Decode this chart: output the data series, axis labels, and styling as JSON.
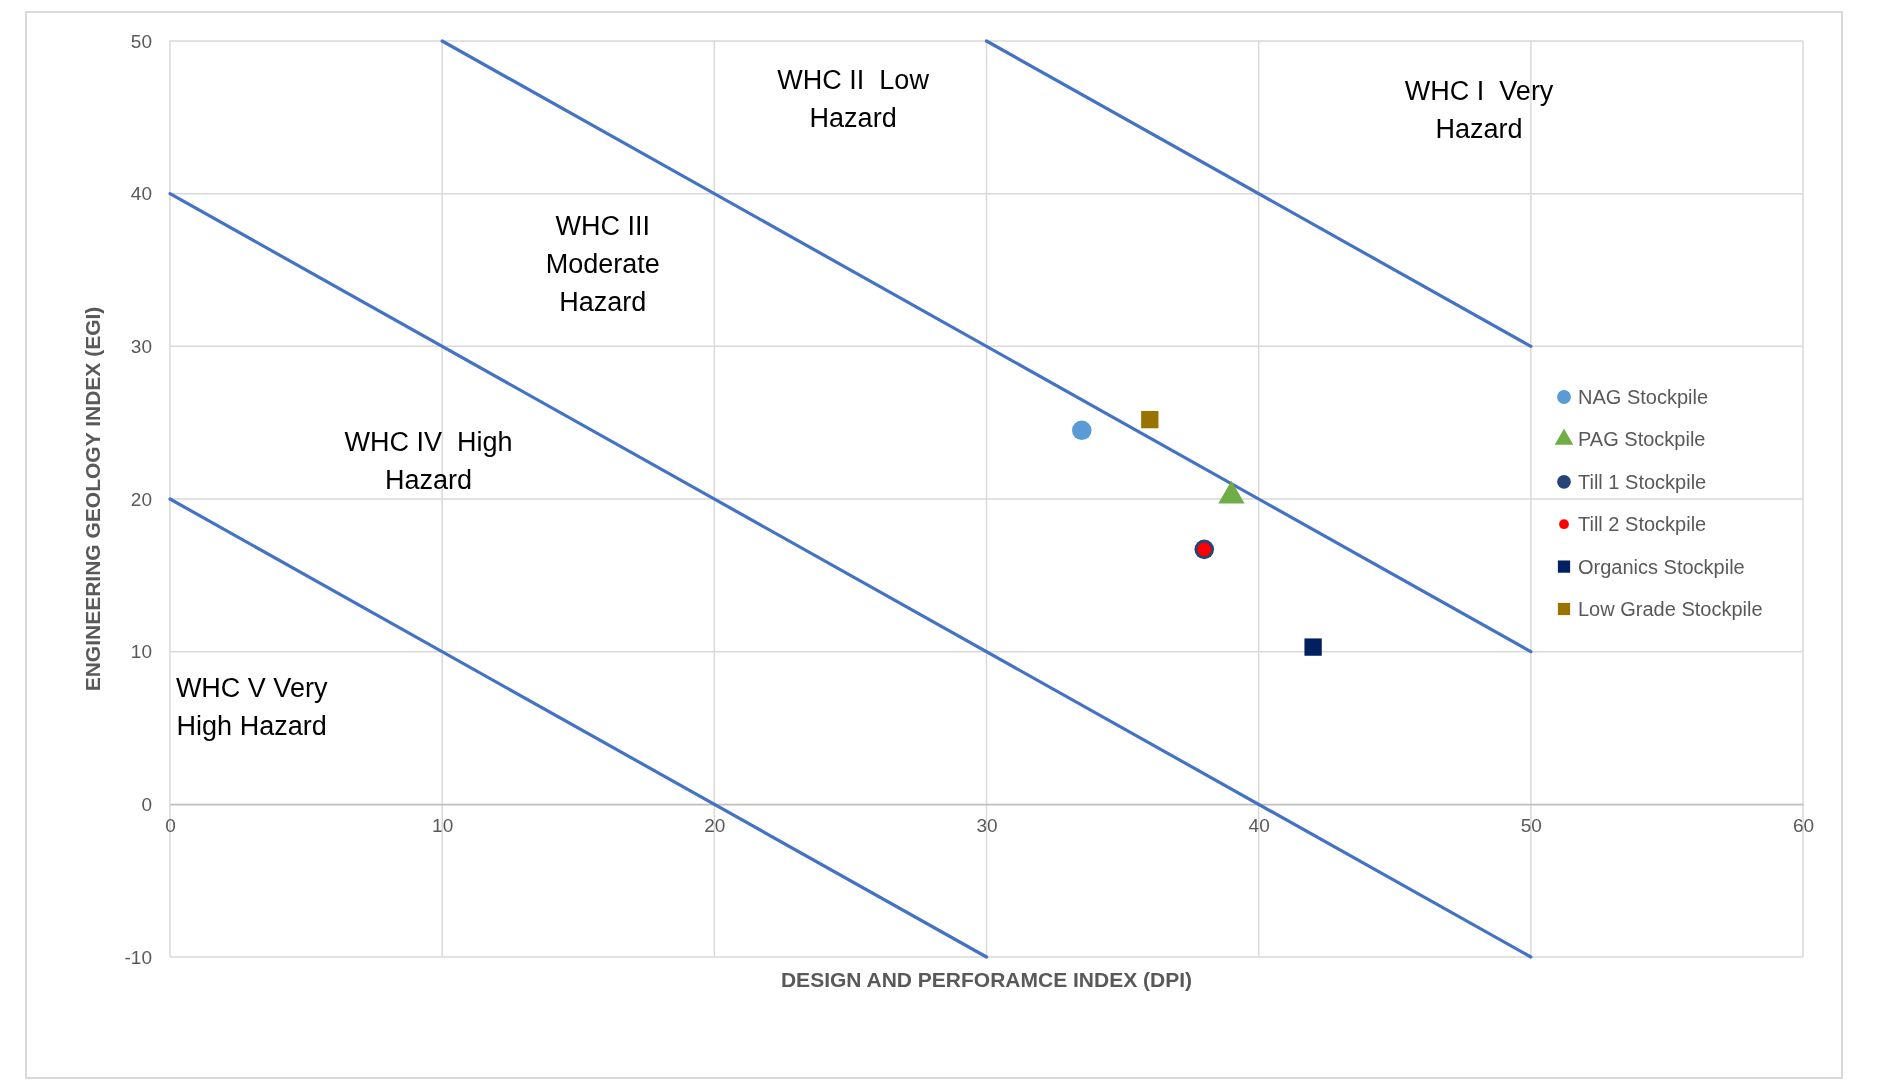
{
  "chart_data": {
    "type": "scatter",
    "xlabel": "DESIGN AND PERFORAMCE INDEX (DPI)",
    "ylabel": "ENGINEERING GEOLOGY INDEX (EGI)",
    "xlim": [
      0,
      60
    ],
    "xticks": [
      0,
      10,
      20,
      30,
      40,
      50,
      60
    ],
    "ylim": [
      -10,
      50
    ],
    "yticks": [
      -10,
      0,
      10,
      20,
      30,
      40,
      50
    ],
    "grid": true,
    "legend": "right",
    "series": [
      {
        "type": "line",
        "color": "#4472c4",
        "x": [
          0,
          30
        ],
        "values": [
          20,
          -10
        ],
        "marker": "none"
      },
      {
        "type": "line",
        "color": "#4472c4",
        "x": [
          0,
          50
        ],
        "values": [
          40,
          -10
        ],
        "marker": "none"
      },
      {
        "type": "line",
        "color": "#4472c4",
        "x": [
          10,
          50
        ],
        "values": [
          50,
          10
        ],
        "marker": "none"
      },
      {
        "type": "line",
        "color": "#4472c4",
        "x": [
          30,
          50
        ],
        "values": [
          50,
          30
        ],
        "marker": "none"
      },
      {
        "name": "NAG Stockpile",
        "color": "#5b9bd5",
        "x": [
          33.5
        ],
        "values": [
          24.5
        ],
        "marker": "circle"
      },
      {
        "name": "PAG Stockpile",
        "color": "#70ad47",
        "x": [
          39
        ],
        "values": [
          20.2
        ],
        "marker": "triangle"
      },
      {
        "name": "Till 1 Stockpile",
        "color": "#264478",
        "x": [
          38
        ],
        "values": [
          16.7
        ],
        "marker": "circle"
      },
      {
        "name": "Till 2 Stockpile",
        "color": "#ff0000",
        "x": [
          38
        ],
        "values": [
          16.7
        ],
        "marker": "circle"
      },
      {
        "name": "Organics Stockpile",
        "color": "#002060",
        "x": [
          42
        ],
        "values": [
          10.3
        ],
        "marker": "square"
      },
      {
        "name": "Low Grade Stockpile",
        "color": "#997300",
        "x": [
          36
        ],
        "values": [
          25.2
        ],
        "marker": "square"
      }
    ],
    "annotations": [
      "WHC I  Very\nHazard",
      "WHC II  Low\nHazard",
      "WHC III\nModerate\nHazard",
      "WHC IV  High\nHazard",
      "WHC V Very\nHigh Hazard"
    ]
  }
}
